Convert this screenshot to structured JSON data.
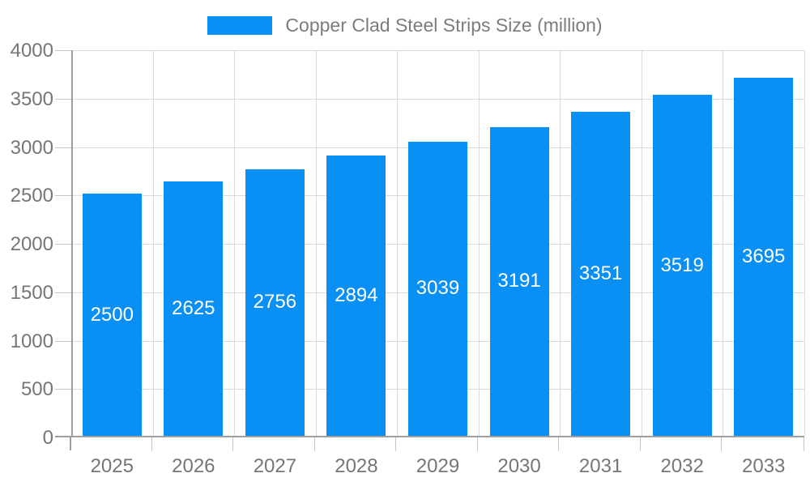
{
  "legend": {
    "label": "Copper Clad Steel Strips Size (million)"
  },
  "colors": {
    "bar": "#0a8ff5",
    "grid": "#dadada",
    "axis": "#9e9e9e",
    "tick_text": "#767676",
    "legend_text": "#7c7c7c",
    "value_text": "#ffffff"
  },
  "chart_data": {
    "type": "bar",
    "title": "",
    "xlabel": "",
    "ylabel": "",
    "categories": [
      "2025",
      "2026",
      "2027",
      "2028",
      "2029",
      "2030",
      "2031",
      "2032",
      "2033"
    ],
    "series": [
      {
        "name": "Copper Clad Steel Strips Size (million)",
        "values": [
          2500,
          2625,
          2756,
          2894,
          3039,
          3191,
          3351,
          3519,
          3695
        ]
      }
    ],
    "value_labels": [
      "2500",
      "2625",
      "2756",
      "2894",
      "3039",
      "3191",
      "3351",
      "3519",
      "3695"
    ],
    "value_label_position": "inside-middle",
    "ylim": [
      0,
      4000
    ],
    "yticks": [
      0,
      500,
      1000,
      1500,
      2000,
      2500,
      3000,
      3500,
      4000
    ],
    "ytick_labels": [
      "0",
      "500",
      "1000",
      "1500",
      "2000",
      "2500",
      "3000",
      "3500",
      "4000"
    ],
    "grid": true,
    "legend_position": "top-center"
  }
}
